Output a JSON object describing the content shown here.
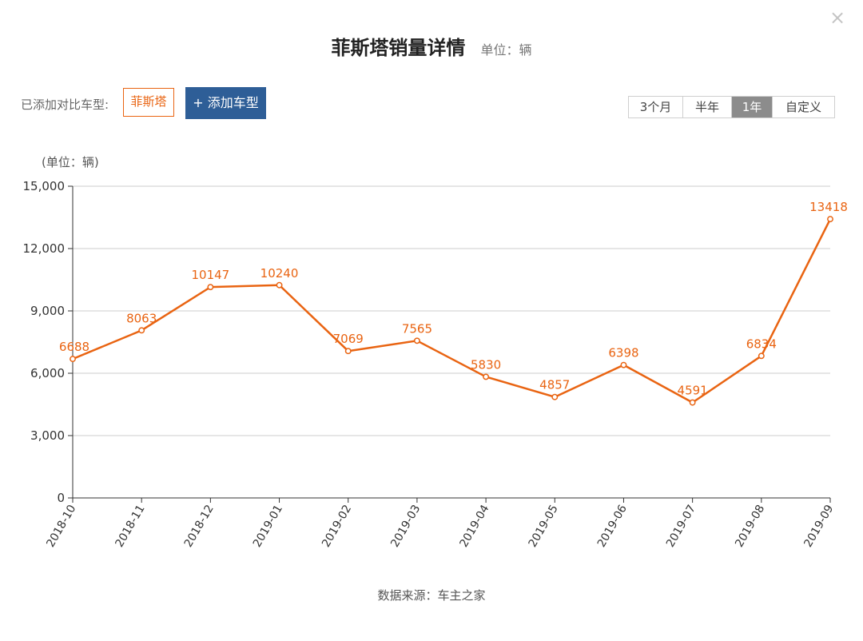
{
  "header": {
    "title": "菲斯塔销量详情",
    "unit": "单位：辆",
    "close_symbol": "×"
  },
  "compare": {
    "label": "已添加对比车型:",
    "car_tag": "菲斯塔",
    "add_button": "+ 添加车型"
  },
  "range_tabs": [
    {
      "label": "3个月",
      "active": false
    },
    {
      "label": "半年",
      "active": false
    },
    {
      "label": "1年",
      "active": true
    },
    {
      "label": "自定义",
      "active": false
    }
  ],
  "footer": {
    "source": "数据来源：车主之家"
  },
  "colors": {
    "accent": "#e96412",
    "button_blue": "#2e5e97",
    "active_tab": "#8c8c8c",
    "grid": "#cccccc"
  },
  "chart_data": {
    "type": "line",
    "title": "",
    "ylabel": "(单位：辆)",
    "xlabel": "",
    "ylim": [
      0,
      15000
    ],
    "y_ticks": [
      0,
      3000,
      6000,
      9000,
      12000,
      15000
    ],
    "y_tick_labels": [
      "0",
      "3,000",
      "6,000",
      "9,000",
      "12,000",
      "15,000"
    ],
    "grid": true,
    "categories": [
      "2018-10",
      "2018-11",
      "2018-12",
      "2019-01",
      "2019-02",
      "2019-03",
      "2019-04",
      "2019-05",
      "2019-06",
      "2019-07",
      "2019-08",
      "2019-09"
    ],
    "series": [
      {
        "values": [
          6688,
          8063,
          10147,
          10240,
          7069,
          7565,
          5830,
          4857,
          6398,
          4591,
          6834,
          13418
        ],
        "color": "#e96412"
      }
    ]
  }
}
